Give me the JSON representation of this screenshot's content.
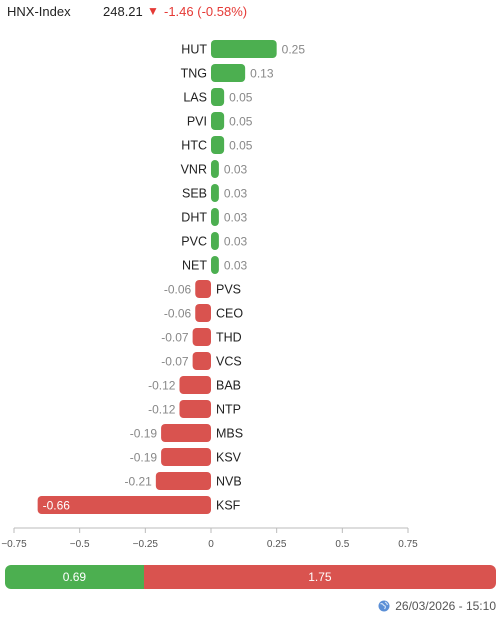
{
  "header": {
    "index_name": "HNX-Index",
    "index_value": "248.21",
    "change_arrow": "▼",
    "change_text": "-1.46 (-0.58%)"
  },
  "colors": {
    "positive": "#4caf50",
    "negative": "#d9534f",
    "down": "#e53935"
  },
  "chart_data": {
    "type": "bar",
    "orientation": "horizontal",
    "categories": [
      "HUT",
      "TNG",
      "LAS",
      "PVI",
      "HTC",
      "VNR",
      "SEB",
      "DHT",
      "PVC",
      "NET",
      "PVS",
      "CEO",
      "THD",
      "VCS",
      "BAB",
      "NTP",
      "MBS",
      "KSV",
      "NVB",
      "KSF"
    ],
    "values": [
      0.25,
      0.13,
      0.05,
      0.05,
      0.05,
      0.03,
      0.03,
      0.03,
      0.03,
      0.03,
      -0.06,
      -0.06,
      -0.07,
      -0.07,
      -0.12,
      -0.12,
      -0.19,
      -0.19,
      -0.21,
      -0.66
    ],
    "value_labels": [
      "0.25",
      "0.13",
      "0.05",
      "0.05",
      "0.05",
      "0.03",
      "0.03",
      "0.03",
      "0.03",
      "0.03",
      "-0.06",
      "-0.06",
      "-0.07",
      "-0.07",
      "-0.12",
      "-0.12",
      "-0.19",
      "-0.19",
      "-0.21",
      "-0.66"
    ],
    "xlim": [
      -0.75,
      0.75
    ],
    "ticks": [
      -0.75,
      -0.5,
      -0.25,
      0,
      0.25,
      0.5,
      0.75
    ],
    "tick_labels": [
      "−0.75",
      "−0.5",
      "−0.25",
      "0",
      "0.25",
      "0.5",
      "0.75"
    ],
    "title": "",
    "xlabel": "",
    "ylabel": "",
    "grid": false,
    "legend": "none"
  },
  "summary": {
    "positive_label": "0.69",
    "negative_label": "1.75",
    "positive_value": 0.69,
    "negative_value": 1.75
  },
  "footer": {
    "timestamp": "26/03/2026 - 15:10",
    "icon": "globe-icon"
  }
}
